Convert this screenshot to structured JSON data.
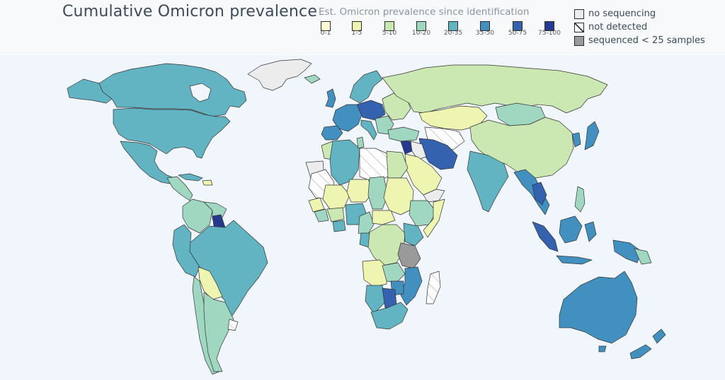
{
  "title": "Cumulative Omicron prevalence",
  "legend": {
    "title": "Est. Omicron prevalence since identification",
    "bins": [
      {
        "label": "0-1",
        "color": "#fbfcd4"
      },
      {
        "label": "1-5",
        "color": "#eef5b0"
      },
      {
        "label": "5-10",
        "color": "#cce8b2"
      },
      {
        "label": "10-20",
        "color": "#9fd7c0"
      },
      {
        "label": "20-35",
        "color": "#63b4c3"
      },
      {
        "label": "35-50",
        "color": "#4290bf"
      },
      {
        "label": "50-75",
        "color": "#3462ae"
      },
      {
        "label": "75-100",
        "color": "#253a8e"
      }
    ],
    "categories": [
      {
        "label": "no sequencing",
        "style": "empty",
        "color": "#ececec"
      },
      {
        "label": "not detected",
        "style": "hatched",
        "color": "#ffffff"
      },
      {
        "label": "sequenced < 25 samples",
        "style": "gray",
        "color": "#9a9a9a"
      }
    ]
  },
  "ocean_color": "#f0f6fc"
}
